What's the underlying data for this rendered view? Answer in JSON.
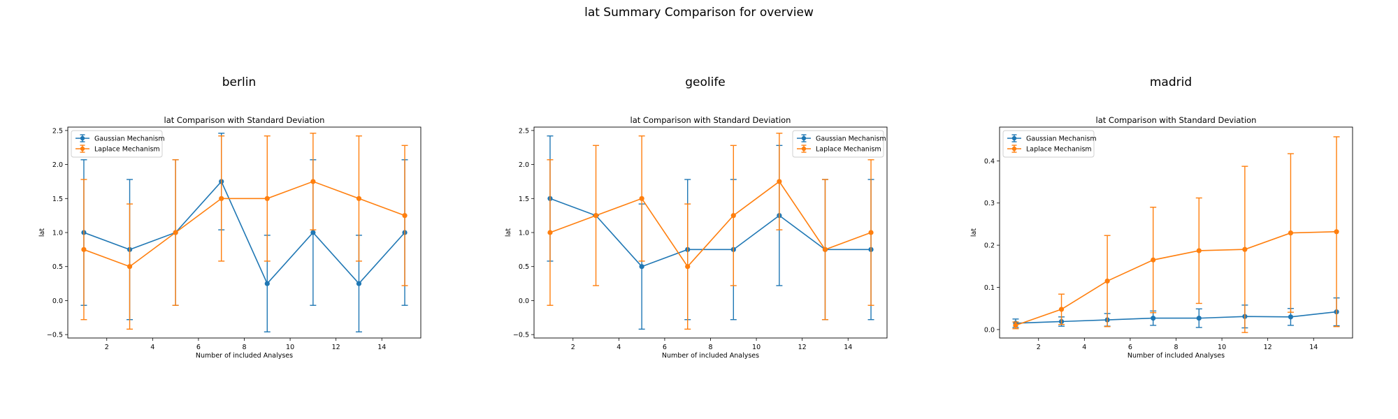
{
  "figure": {
    "title": "lat Summary Comparison for overview"
  },
  "colors": {
    "gaussian": "#1f77b4",
    "laplace": "#ff7f0e"
  },
  "chart_data": [
    {
      "type": "line",
      "panel_title": "berlin",
      "title": "lat Comparison with Standard Deviation",
      "xlabel": "Number of included Analyses",
      "ylabel": "lat",
      "xlim": [
        0.3,
        15.7
      ],
      "ylim": [
        -0.55,
        2.55
      ],
      "xticks": [
        2,
        4,
        6,
        8,
        10,
        12,
        14
      ],
      "yticks": [
        -0.5,
        0.0,
        0.5,
        1.0,
        1.5,
        2.0,
        2.5
      ],
      "legend": "top-left",
      "x": [
        1,
        3,
        5,
        7,
        9,
        11,
        13,
        15
      ],
      "series": [
        {
          "name": "Gaussian Mechanism",
          "values": [
            1.0,
            0.75,
            1.0,
            1.75,
            0.25,
            1.0,
            0.25,
            1.0
          ],
          "yerr": [
            1.07,
            1.03,
            1.07,
            0.71,
            0.71,
            1.07,
            0.71,
            1.07
          ]
        },
        {
          "name": "Laplace Mechanism",
          "values": [
            0.75,
            0.5,
            1.0,
            1.5,
            1.5,
            1.75,
            1.5,
            1.25
          ],
          "yerr": [
            1.03,
            0.92,
            1.07,
            0.92,
            0.92,
            0.71,
            0.92,
            1.03
          ]
        }
      ]
    },
    {
      "type": "line",
      "panel_title": "geolife",
      "title": "lat Comparison with Standard Deviation",
      "xlabel": "Number of included Analyses",
      "ylabel": "lat",
      "xlim": [
        0.3,
        15.7
      ],
      "ylim": [
        -0.55,
        2.55
      ],
      "xticks": [
        2,
        4,
        6,
        8,
        10,
        12,
        14
      ],
      "yticks": [
        -0.5,
        0.0,
        0.5,
        1.0,
        1.5,
        2.0,
        2.5
      ],
      "legend": "top-right",
      "x": [
        1,
        3,
        5,
        7,
        9,
        11,
        13,
        15
      ],
      "series": [
        {
          "name": "Gaussian Mechanism",
          "values": [
            1.5,
            1.25,
            0.5,
            0.75,
            0.75,
            1.25,
            0.75,
            0.75
          ],
          "yerr": [
            0.92,
            0.0,
            0.92,
            1.03,
            1.03,
            1.03,
            1.03,
            1.03
          ]
        },
        {
          "name": "Laplace Mechanism",
          "values": [
            1.0,
            1.25,
            1.5,
            0.5,
            1.25,
            1.75,
            0.75,
            1.0
          ],
          "yerr": [
            1.07,
            1.03,
            0.92,
            0.92,
            1.03,
            0.71,
            1.03,
            1.07
          ]
        }
      ]
    },
    {
      "type": "line",
      "panel_title": "madrid",
      "title": "lat Comparison with Standard Deviation",
      "xlabel": "Number of included Analyses",
      "ylabel": "lat",
      "xlim": [
        0.3,
        15.7
      ],
      "ylim": [
        -0.02,
        0.48
      ],
      "xticks": [
        2,
        4,
        6,
        8,
        10,
        12,
        14
      ],
      "yticks": [
        0.0,
        0.1,
        0.2,
        0.3,
        0.4
      ],
      "legend": "top-left",
      "x": [
        1,
        3,
        5,
        7,
        9,
        11,
        13,
        15
      ],
      "series": [
        {
          "name": "Gaussian Mechanism",
          "values": [
            0.015,
            0.019,
            0.023,
            0.027,
            0.027,
            0.031,
            0.03,
            0.042
          ],
          "yerr": [
            0.01,
            0.011,
            0.015,
            0.017,
            0.022,
            0.027,
            0.02,
            0.033
          ]
        },
        {
          "name": "Laplace Mechanism",
          "values": [
            0.01,
            0.048,
            0.115,
            0.165,
            0.187,
            0.19,
            0.229,
            0.232
          ],
          "yerr": [
            0.008,
            0.036,
            0.108,
            0.125,
            0.125,
            0.197,
            0.188,
            0.225
          ]
        }
      ]
    }
  ]
}
